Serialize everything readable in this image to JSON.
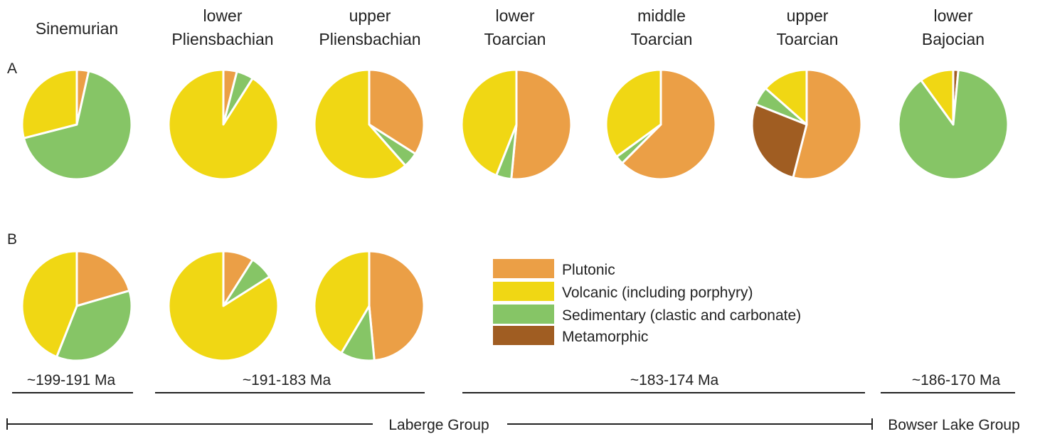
{
  "chart_data": {
    "type": "pie",
    "row_labels": [
      "A",
      "B"
    ],
    "stages": [
      {
        "line1": "",
        "line2": "Sinemurian"
      },
      {
        "line1": "lower",
        "line2": "Pliensbachian"
      },
      {
        "line1": "upper",
        "line2": "Pliensbachian"
      },
      {
        "line1": "lower",
        "line2": "Toarcian"
      },
      {
        "line1": "middle",
        "line2": "Toarcian"
      },
      {
        "line1": "upper",
        "line2": "Toarcian"
      },
      {
        "line1": "lower",
        "line2": "Bajocian"
      }
    ],
    "categories": [
      "Plutonic",
      "Volcanic (including porphyry)",
      "Sedimentary (clastic and carbonate)",
      "Metamorphic"
    ],
    "colors": [
      "#eb9f46",
      "#f0d714",
      "#86c566",
      "#a05d22"
    ],
    "rows": [
      {
        "row": "A",
        "pies": [
          {
            "stage": "Sinemurian",
            "values": [
              3.5,
              29,
              67.5,
              0
            ]
          },
          {
            "stage": "lower Pliensbachian",
            "values": [
              4,
              91,
              5,
              0
            ]
          },
          {
            "stage": "upper Pliensbachian",
            "values": [
              34,
              61.5,
              4.5,
              0
            ]
          },
          {
            "stage": "lower Toarcian",
            "values": [
              51.5,
              44,
              4.5,
              0
            ]
          },
          {
            "stage": "middle Toarcian",
            "values": [
              62.5,
              35,
              2.5,
              0
            ]
          },
          {
            "stage": "upper Toarcian",
            "values": [
              54,
              13.5,
              5.5,
              27
            ]
          },
          {
            "stage": "lower Bajocian",
            "values": [
              0,
              10,
              88.5,
              1.5
            ]
          }
        ]
      },
      {
        "row": "B",
        "pies": [
          {
            "stage": "Sinemurian",
            "values": [
              20.5,
              44,
              35.5,
              0
            ]
          },
          {
            "stage": "lower Pliensbachian",
            "values": [
              9,
              84,
              7,
              0
            ]
          },
          {
            "stage": "upper Pliensbachian",
            "values": [
              48.5,
              41.5,
              10,
              0
            ]
          }
        ]
      }
    ],
    "age_ranges": [
      "~199-191 Ma",
      "~191-183 Ma",
      "~183-174 Ma",
      "~186-170 Ma"
    ],
    "groups": [
      "Laberge Group",
      "Bowser Lake Group"
    ],
    "legend_position": "center-right"
  }
}
